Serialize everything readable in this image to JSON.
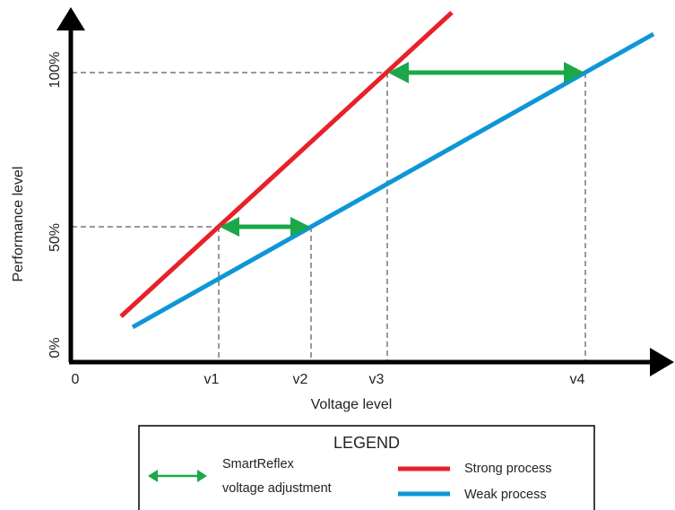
{
  "labels": {
    "y_axis_title": "Performance level",
    "x_axis_title": "Voltage level",
    "origin": "0",
    "y_ticks": [
      "0%",
      "50%",
      "100%"
    ],
    "x_ticks": [
      "v1",
      "v2",
      "v3",
      "v4"
    ]
  },
  "legend": {
    "title": "LEGEND",
    "adjustment_line1": "SmartReflex",
    "adjustment_line2": "voltage adjustment",
    "strong": "Strong process",
    "weak": "Weak process"
  },
  "colors": {
    "strong": "#e8202a",
    "weak": "#0e96d6",
    "adjustment": "#1aa84a",
    "axis": "#000000",
    "guide": "#333333"
  }
}
